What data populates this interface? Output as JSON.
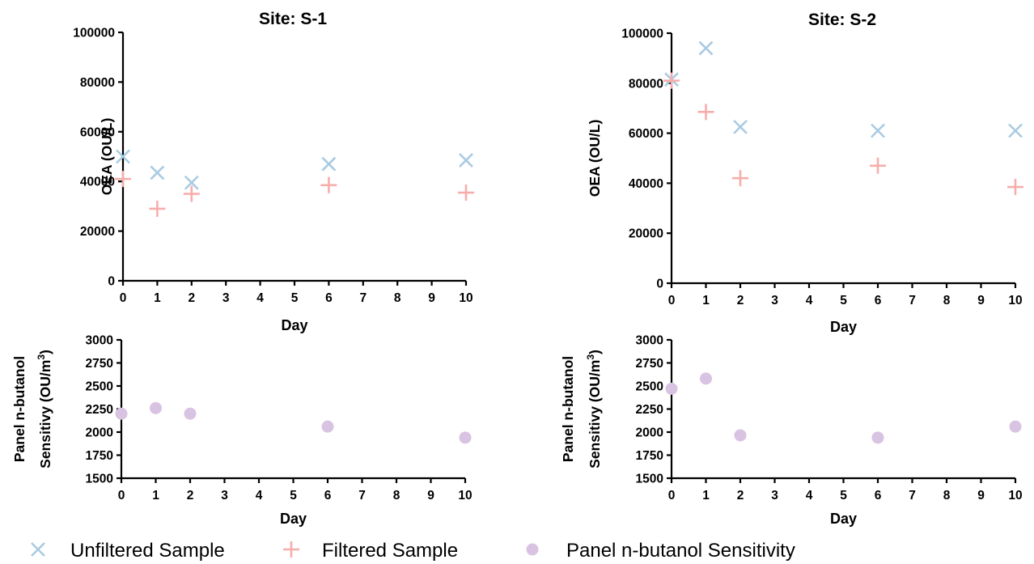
{
  "colors": {
    "unfiltered": "#a9cbe2",
    "filtered": "#f6aeab",
    "sensitivity": "#d9c3e2",
    "axis": "#000000"
  },
  "legend": {
    "items": [
      {
        "label": "Unfiltered Sample",
        "marker": "x",
        "color": "#a9cbe2"
      },
      {
        "label": "Filtered Sample",
        "marker": "plus",
        "color": "#f6aeab"
      },
      {
        "label": "Panel n-butanol Sensitivity",
        "marker": "circle",
        "color": "#d9c3e2"
      }
    ]
  },
  "chart_data": [
    {
      "id": "s1-oea",
      "type": "scatter",
      "title": "Site: S-1",
      "xlabel": "Day",
      "ylabel": "OEA (OU/L)",
      "xlim": [
        0,
        10
      ],
      "ylim": [
        0,
        100000
      ],
      "xticks": [
        0,
        1,
        2,
        3,
        4,
        5,
        6,
        7,
        8,
        9,
        10
      ],
      "yticks": [
        0,
        20000,
        40000,
        60000,
        80000,
        100000
      ],
      "series": [
        {
          "name": "Unfiltered Sample",
          "marker": "x",
          "x": [
            0,
            1,
            2,
            6,
            10
          ],
          "y": [
            50000,
            43500,
            39500,
            47000,
            48500
          ]
        },
        {
          "name": "Filtered Sample",
          "marker": "plus",
          "x": [
            0,
            1,
            2,
            6,
            10
          ],
          "y": [
            41000,
            29000,
            35000,
            38500,
            35500
          ]
        }
      ]
    },
    {
      "id": "s2-oea",
      "type": "scatter",
      "title": "Site: S-2",
      "xlabel": "Day",
      "ylabel": "OEA (OU/L)",
      "xlim": [
        0,
        10
      ],
      "ylim": [
        0,
        100000
      ],
      "xticks": [
        0,
        1,
        2,
        3,
        4,
        5,
        6,
        7,
        8,
        9,
        10
      ],
      "yticks": [
        0,
        20000,
        40000,
        60000,
        80000,
        100000
      ],
      "series": [
        {
          "name": "Unfiltered Sample",
          "marker": "x",
          "x": [
            0,
            1,
            2,
            6,
            10
          ],
          "y": [
            81500,
            94000,
            62500,
            61000,
            61000
          ]
        },
        {
          "name": "Filtered Sample",
          "marker": "plus",
          "x": [
            0,
            1,
            2,
            6,
            10
          ],
          "y": [
            81000,
            68500,
            42000,
            47000,
            38500
          ]
        }
      ]
    },
    {
      "id": "s1-sens",
      "type": "scatter",
      "title": "",
      "xlabel": "Day",
      "ylabel_line1": "Panel n-butanol",
      "ylabel_line2": "Sensitivy (OU/m",
      "ylabel_sup": "3",
      "ylabel_close": ")",
      "xlim": [
        0,
        10
      ],
      "ylim": [
        1500,
        3000
      ],
      "xticks": [
        0,
        1,
        2,
        3,
        4,
        5,
        6,
        7,
        8,
        9,
        10
      ],
      "yticks": [
        1500,
        1750,
        2000,
        2250,
        2500,
        2750,
        3000
      ],
      "series": [
        {
          "name": "Panel n-butanol Sensitivity",
          "marker": "circle",
          "x": [
            0,
            1,
            2,
            6,
            10
          ],
          "y": [
            2200,
            2260,
            2200,
            2060,
            1940
          ]
        }
      ]
    },
    {
      "id": "s2-sens",
      "type": "scatter",
      "title": "",
      "xlabel": "Day",
      "ylabel_line1": "Panel n-butanol",
      "ylabel_line2": "Sensitivy (OU/m",
      "ylabel_sup": "3",
      "ylabel_close": ")",
      "xlim": [
        0,
        10
      ],
      "ylim": [
        1500,
        3000
      ],
      "xticks": [
        0,
        1,
        2,
        3,
        4,
        5,
        6,
        7,
        8,
        9,
        10
      ],
      "yticks": [
        1500,
        1750,
        2000,
        2250,
        2500,
        2750,
        3000
      ],
      "series": [
        {
          "name": "Panel n-butanol Sensitivity",
          "marker": "circle",
          "x": [
            0,
            1,
            2,
            6,
            10
          ],
          "y": [
            2470,
            2580,
            1965,
            1940,
            2060
          ]
        }
      ]
    }
  ]
}
